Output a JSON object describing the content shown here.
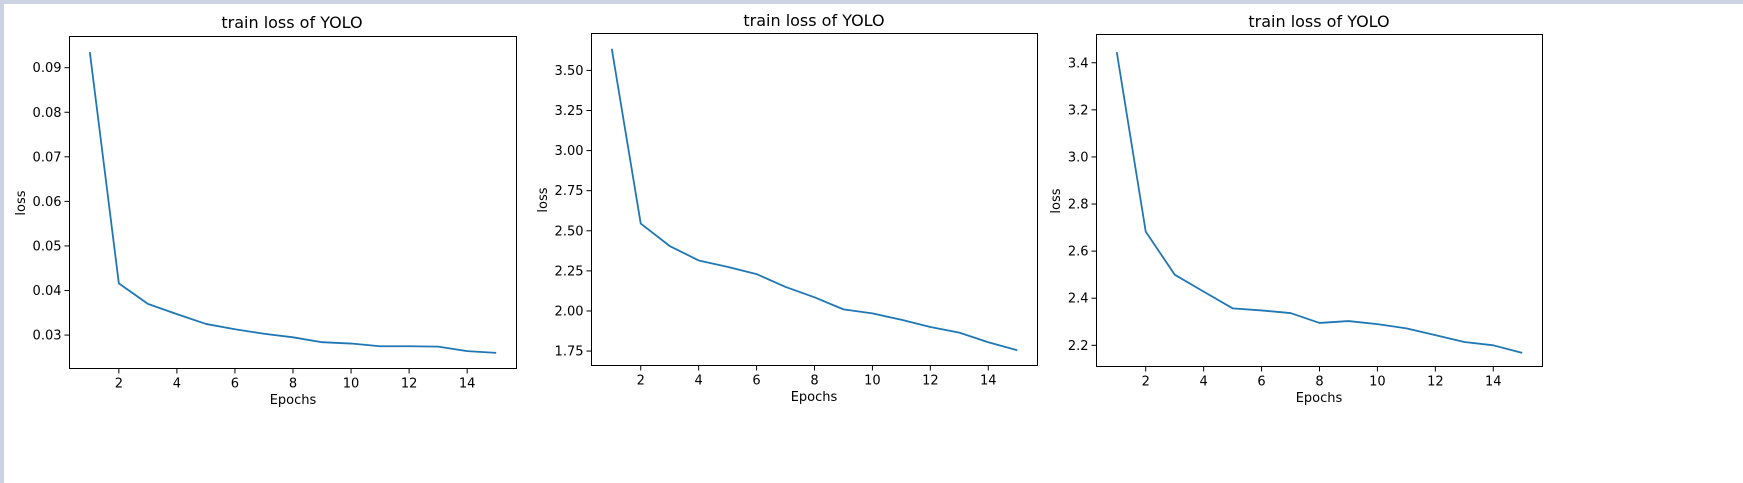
{
  "colors": {
    "series": "#1f77b4",
    "background": "#ffffff",
    "frame": "#ccd3e2"
  },
  "chart_data": [
    {
      "type": "line",
      "title": "train loss of YOLO",
      "xlabel": "Epochs",
      "ylabel": "loss",
      "grid": false,
      "xlim": [
        0.3,
        15.7
      ],
      "ylim": [
        0.0225,
        0.097
      ],
      "xticks": [
        2,
        4,
        6,
        8,
        10,
        12,
        14
      ],
      "yticks": [
        0.03,
        0.04,
        0.05,
        0.06,
        0.07,
        0.08,
        0.09
      ],
      "ytick_labels": [
        "0.03",
        "0.04",
        "0.05",
        "0.06",
        "0.07",
        "0.08",
        "0.09"
      ],
      "x": [
        1,
        2,
        3,
        4,
        5,
        6,
        7,
        8,
        9,
        10,
        11,
        12,
        13,
        14,
        15
      ],
      "y": [
        0.0935,
        0.0416,
        0.037,
        0.0347,
        0.0325,
        0.0313,
        0.0303,
        0.0295,
        0.0284,
        0.0281,
        0.0275,
        0.0275,
        0.0274,
        0.0264,
        0.026
      ]
    },
    {
      "type": "line",
      "title": "train loss of YOLO",
      "xlabel": "Epochs",
      "ylabel": "loss",
      "grid": false,
      "xlim": [
        0.3,
        15.7
      ],
      "ylim": [
        1.66,
        3.73
      ],
      "xticks": [
        2,
        4,
        6,
        8,
        10,
        12,
        14
      ],
      "yticks": [
        1.75,
        2.0,
        2.25,
        2.5,
        2.75,
        3.0,
        3.25,
        3.5
      ],
      "ytick_labels": [
        "1.75",
        "2.00",
        "2.25",
        "2.50",
        "2.75",
        "3.00",
        "3.25",
        "3.50"
      ],
      "x": [
        1,
        2,
        3,
        4,
        5,
        6,
        7,
        8,
        9,
        10,
        11,
        12,
        13,
        14,
        15
      ],
      "y": [
        3.635,
        2.545,
        2.405,
        2.315,
        2.275,
        2.23,
        2.15,
        2.085,
        2.01,
        1.985,
        1.945,
        1.9,
        1.865,
        1.805,
        1.755
      ]
    },
    {
      "type": "line",
      "title": "train loss of YOLO",
      "xlabel": "Epochs",
      "ylabel": "loss",
      "grid": false,
      "xlim": [
        0.3,
        15.7
      ],
      "ylim": [
        2.11,
        3.52
      ],
      "xticks": [
        2,
        4,
        6,
        8,
        10,
        12,
        14
      ],
      "yticks": [
        2.2,
        2.4,
        2.6,
        2.8,
        3.0,
        3.2,
        3.4
      ],
      "ytick_labels": [
        "2.2",
        "2.4",
        "2.6",
        "2.8",
        "3.0",
        "3.2",
        "3.4"
      ],
      "x": [
        1,
        2,
        3,
        4,
        5,
        6,
        7,
        8,
        9,
        10,
        11,
        12,
        13,
        14,
        15
      ],
      "y": [
        3.445,
        2.683,
        2.5,
        2.428,
        2.357,
        2.348,
        2.337,
        2.295,
        2.303,
        2.29,
        2.272,
        2.243,
        2.214,
        2.2,
        2.168
      ]
    }
  ]
}
